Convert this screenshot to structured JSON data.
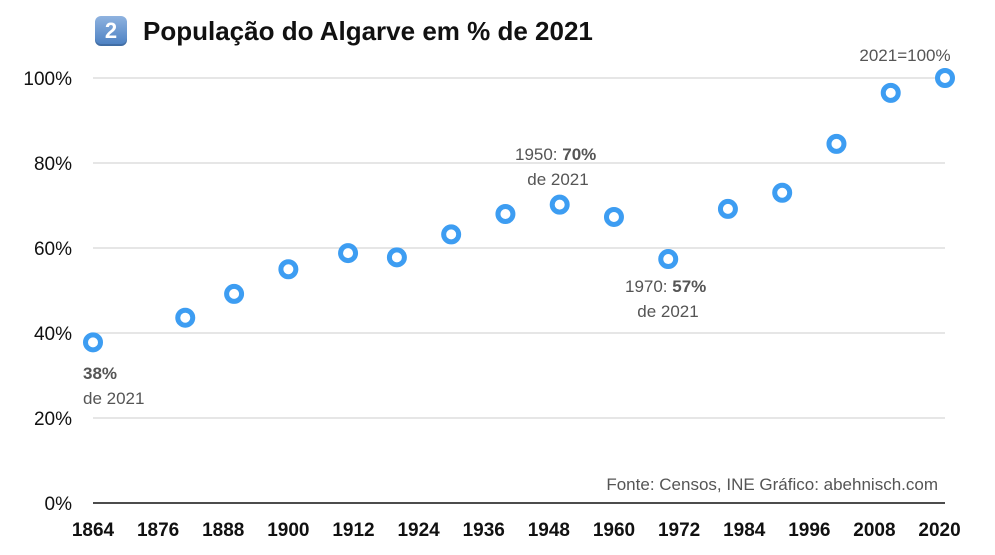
{
  "title_badge": "2",
  "title": "População do Algarve em % de 2021",
  "source": "Fonte: Censos, INE  Gráfico: abehnisch.com",
  "colors": {
    "point": "#3d9df2",
    "grid": "#cccccc",
    "axis": "#111111"
  },
  "chart_data": {
    "type": "scatter",
    "title": "População do Algarve em % de 2021",
    "xlabel": "",
    "ylabel": "",
    "xlim": [
      1864,
      2021
    ],
    "ylim": [
      0,
      100
    ],
    "x_ticks": [
      1864,
      1876,
      1888,
      1900,
      1912,
      1924,
      1936,
      1948,
      1960,
      1972,
      1984,
      1996,
      2008,
      2020
    ],
    "y_ticks": [
      0,
      20,
      40,
      60,
      80,
      100
    ],
    "y_tick_labels": [
      "0%",
      "20%",
      "40%",
      "60%",
      "80%",
      "100%"
    ],
    "grid": "horizontal",
    "points": [
      {
        "x": 1864,
        "y": 37.8
      },
      {
        "x": 1881,
        "y": 43.6
      },
      {
        "x": 1890,
        "y": 49.2
      },
      {
        "x": 1900,
        "y": 55.0
      },
      {
        "x": 1911,
        "y": 58.8
      },
      {
        "x": 1920,
        "y": 57.8
      },
      {
        "x": 1930,
        "y": 63.2
      },
      {
        "x": 1940,
        "y": 68.0
      },
      {
        "x": 1950,
        "y": 70.2
      },
      {
        "x": 1960,
        "y": 67.3
      },
      {
        "x": 1970,
        "y": 57.4
      },
      {
        "x": 1981,
        "y": 69.2
      },
      {
        "x": 1991,
        "y": 73.0
      },
      {
        "x": 2001,
        "y": 84.5
      },
      {
        "x": 2011,
        "y": 96.5
      },
      {
        "x": 2021,
        "y": 100.0
      }
    ],
    "annotations": [
      {
        "pre": "",
        "bold": "38%",
        "line2": "de 2021"
      },
      {
        "pre": "1950: ",
        "bold": "70%",
        "line2": "de 2021"
      },
      {
        "pre": "1970: ",
        "bold": "57%",
        "line2": "de 2021"
      },
      {
        "pre": "2021=100%",
        "bold": "",
        "line2": ""
      }
    ]
  }
}
